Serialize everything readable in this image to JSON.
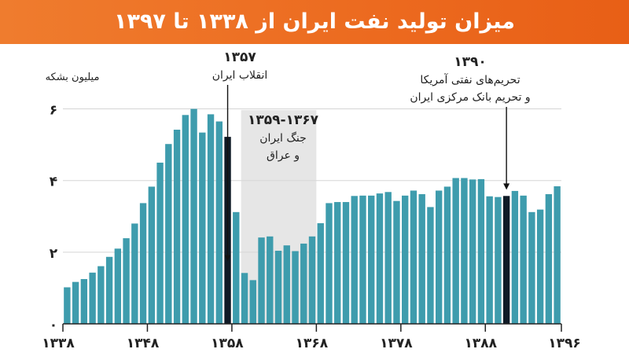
{
  "header": {
    "title": "میزان تولید نفت ایران از ۱۳۳۸ تا ۱۳۹۷"
  },
  "colors": {
    "banner": "#ec6a1f",
    "bar": "#3e9cad",
    "bar_highlight": "#0f1a26",
    "war_band": "#e6e6e6",
    "grid": "#d5d5d5",
    "text": "#222222"
  },
  "chart_data": {
    "type": "bar",
    "title": "میزان تولید نفت ایران از ۱۳۳۸ تا ۱۳۹۷",
    "ylabel": "میلیون بشکه",
    "xlabel": "",
    "ylim": [
      0,
      6.1
    ],
    "yticks": [
      {
        "value": 0,
        "label": "۰"
      },
      {
        "value": 2,
        "label": "۲"
      },
      {
        "value": 4,
        "label": "۴"
      },
      {
        "value": 6,
        "label": "۶"
      }
    ],
    "xticks": [
      {
        "year": 1338,
        "label": "۱۳۳۸"
      },
      {
        "year": 1348,
        "label": "۱۳۴۸"
      },
      {
        "year": 1358,
        "label": "۱۳۵۸"
      },
      {
        "year": 1368,
        "label": "۱۳۶۸"
      },
      {
        "year": 1378,
        "label": "۱۳۷۸"
      },
      {
        "year": 1388,
        "label": "۱۳۸۸"
      },
      {
        "year": 1396,
        "label": "۱۳۹۶"
      }
    ],
    "grid": true,
    "categories": [
      1338,
      1339,
      1340,
      1341,
      1342,
      1343,
      1344,
      1345,
      1346,
      1347,
      1348,
      1349,
      1350,
      1351,
      1352,
      1353,
      1354,
      1355,
      1356,
      1357,
      1358,
      1359,
      1360,
      1361,
      1362,
      1363,
      1364,
      1365,
      1366,
      1367,
      1368,
      1369,
      1370,
      1371,
      1372,
      1373,
      1374,
      1375,
      1376,
      1377,
      1378,
      1379,
      1380,
      1381,
      1382,
      1383,
      1384,
      1385,
      1386,
      1387,
      1388,
      1389,
      1390,
      1391,
      1392,
      1393,
      1394,
      1395,
      1396
    ],
    "values": [
      1.02,
      1.17,
      1.25,
      1.43,
      1.61,
      1.87,
      2.1,
      2.39,
      2.8,
      3.37,
      3.83,
      4.5,
      5.02,
      5.42,
      5.83,
      6.0,
      5.34,
      5.85,
      5.65,
      5.22,
      3.12,
      1.42,
      1.22,
      2.41,
      2.44,
      2.04,
      2.19,
      2.03,
      2.24,
      2.44,
      2.81,
      3.37,
      3.4,
      3.4,
      3.57,
      3.58,
      3.58,
      3.64,
      3.68,
      3.43,
      3.58,
      3.72,
      3.62,
      3.26,
      3.72,
      3.83,
      4.07,
      4.07,
      4.03,
      4.04,
      3.56,
      3.54,
      3.57,
      3.71,
      3.58,
      3.12,
      3.19,
      3.62,
      3.84
    ],
    "highlight": [
      1357,
      1390
    ],
    "shaded_range": {
      "from": 1359,
      "to": 1367
    },
    "annotations": [
      {
        "year": 1357,
        "lines": [
          "۱۳۵۷",
          "انقلاب ایران"
        ],
        "arrow": true
      },
      {
        "year": 1390,
        "lines": [
          "۱۳۹۰",
          "تحریم‌های نفتی آمریکا",
          "و تحریم بانک مرکزی ایران"
        ],
        "arrow": true
      },
      {
        "year": 1363,
        "lines": [
          "۱۳۵۹-۱۳۶۷",
          "جنگ ایران",
          "و عراق"
        ],
        "arrow": false
      }
    ]
  }
}
